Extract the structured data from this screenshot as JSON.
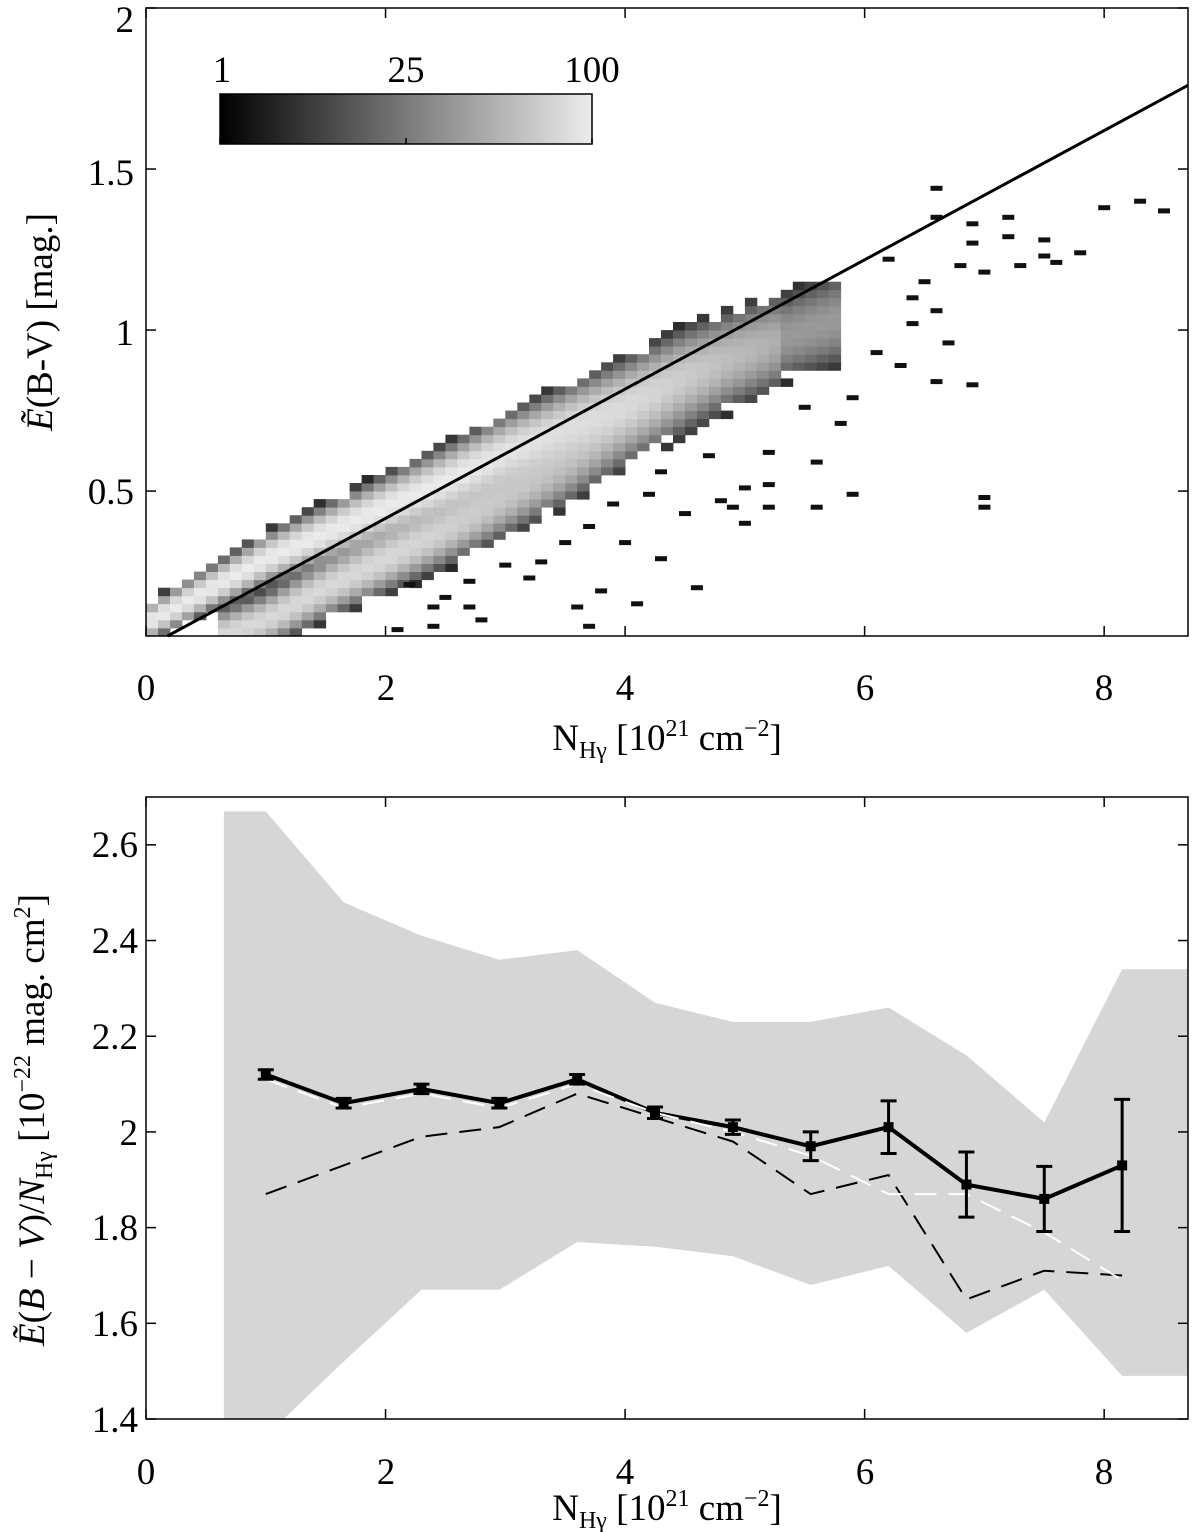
{
  "chart_data": [
    {
      "type": "heatmap",
      "title": "",
      "xlabel": "N_Hγ [10^21 cm^-2]",
      "ylabel": "Ẽ(B-V) [mag.]",
      "xlim": [
        0,
        8.7
      ],
      "ylim": [
        0.05,
        2.0
      ],
      "x_ticks": [
        "0",
        "2",
        "4",
        "6",
        "8"
      ],
      "y_ticks": [
        "0.5",
        "1",
        "1.5",
        "2"
      ],
      "colorbar": {
        "ticks": [
          "1",
          "25",
          "100"
        ],
        "range": [
          1,
          100
        ],
        "colormap": "gray"
      },
      "fit_line": {
        "x": [
          0.18,
          8.7
        ],
        "y": [
          0.05,
          1.76
        ]
      },
      "density_ridges": [
        {
          "name": "upper ridge",
          "x": [
            0.0,
            0.5,
            1.0,
            1.5,
            2.0,
            2.5,
            3.0,
            3.5,
            4.0,
            4.5,
            5.0,
            5.5
          ],
          "y": [
            0.09,
            0.19,
            0.29,
            0.37,
            0.45,
            0.53,
            0.62,
            0.7,
            0.78,
            0.87,
            0.94,
            1.0
          ],
          "peak": 100
        },
        {
          "name": "lower ridge",
          "x": [
            0.6,
            1.0,
            1.5,
            2.0,
            2.5,
            3.0,
            3.5,
            4.0,
            4.5,
            5.0
          ],
          "y": [
            0.05,
            0.1,
            0.2,
            0.29,
            0.38,
            0.48,
            0.58,
            0.7,
            0.8,
            0.9
          ],
          "peak": 70
        }
      ],
      "outliers": [
        [
          6.6,
          1.44
        ],
        [
          6.6,
          1.35
        ],
        [
          6.9,
          1.33
        ],
        [
          6.9,
          1.27
        ],
        [
          7.2,
          1.35
        ],
        [
          7.2,
          1.29
        ],
        [
          7.5,
          1.28
        ],
        [
          7.5,
          1.23
        ],
        [
          7.8,
          1.24
        ],
        [
          7.6,
          1.21
        ],
        [
          8.0,
          1.38
        ],
        [
          8.3,
          1.4
        ],
        [
          8.5,
          1.37
        ],
        [
          7.3,
          1.2
        ],
        [
          6.8,
          1.2
        ],
        [
          7.0,
          1.18
        ],
        [
          6.2,
          1.22
        ],
        [
          6.5,
          1.15
        ],
        [
          6.4,
          1.1
        ],
        [
          6.6,
          1.06
        ],
        [
          6.4,
          1.02
        ],
        [
          6.7,
          0.96
        ],
        [
          6.1,
          0.93
        ],
        [
          6.3,
          0.89
        ],
        [
          6.6,
          0.84
        ],
        [
          6.9,
          0.83
        ],
        [
          5.9,
          0.79
        ],
        [
          5.5,
          0.76
        ],
        [
          5.8,
          0.71
        ],
        [
          5.2,
          0.52
        ],
        [
          5.0,
          0.51
        ],
        [
          4.8,
          0.47
        ],
        [
          4.9,
          0.45
        ],
        [
          5.0,
          0.4
        ],
        [
          4.5,
          0.43
        ],
        [
          4.2,
          0.49
        ],
        [
          3.9,
          0.46
        ],
        [
          3.7,
          0.39
        ],
        [
          3.5,
          0.34
        ],
        [
          3.3,
          0.28
        ],
        [
          3.0,
          0.27
        ],
        [
          3.2,
          0.23
        ],
        [
          2.7,
          0.22
        ],
        [
          2.5,
          0.17
        ],
        [
          2.7,
          0.14
        ],
        [
          2.8,
          0.1
        ],
        [
          2.4,
          0.14
        ],
        [
          2.2,
          0.21
        ],
        [
          2.4,
          0.08
        ],
        [
          2.1,
          0.07
        ],
        [
          3.7,
          0.08
        ],
        [
          4.1,
          0.15
        ],
        [
          4.6,
          0.2
        ],
        [
          4.3,
          0.29
        ],
        [
          4.0,
          0.34
        ],
        [
          3.6,
          0.14
        ],
        [
          3.8,
          0.19
        ],
        [
          7.0,
          0.48
        ],
        [
          7.0,
          0.45
        ],
        [
          5.2,
          0.45
        ],
        [
          5.6,
          0.45
        ],
        [
          4.3,
          0.56
        ],
        [
          4.7,
          0.61
        ],
        [
          5.2,
          0.62
        ],
        [
          5.6,
          0.59
        ],
        [
          5.9,
          0.49
        ]
      ]
    },
    {
      "type": "line",
      "title": "",
      "xlabel": "N_Hγ [10^21 cm^-2]",
      "ylabel": "Ẽ(B−V)/N_Hγ [10^-22 mag. cm^2]",
      "xlim": [
        0,
        8.7
      ],
      "ylim": [
        1.4,
        2.7
      ],
      "x_ticks": [
        "0",
        "2",
        "4",
        "6",
        "8"
      ],
      "y_ticks": [
        "1.4",
        "1.6",
        "1.8",
        "2",
        "2.2",
        "2.4",
        "2.6"
      ],
      "band": {
        "name": "spread",
        "x": [
          0.65,
          1.0,
          1.65,
          2.3,
          2.95,
          3.6,
          4.25,
          4.9,
          5.55,
          6.2,
          6.85,
          7.5,
          8.15,
          8.7
        ],
        "upper": [
          2.67,
          2.67,
          2.48,
          2.41,
          2.36,
          2.38,
          2.27,
          2.23,
          2.23,
          2.26,
          2.16,
          2.02,
          2.34,
          2.34
        ],
        "lower_x": [
          8.7,
          8.15,
          7.5,
          6.85,
          6.2,
          5.55,
          4.9,
          4.25,
          3.6,
          2.95,
          2.3,
          1.65,
          1.15,
          0.65
        ],
        "lower": [
          1.49,
          1.49,
          1.67,
          1.58,
          1.72,
          1.68,
          1.74,
          1.76,
          1.77,
          1.67,
          1.67,
          1.52,
          1.4,
          1.4
        ]
      },
      "series": [
        {
          "name": "mean",
          "style": "solid-black",
          "x": [
            1.0,
            1.65,
            2.3,
            2.95,
            3.6,
            4.25,
            4.9,
            5.55,
            6.2,
            6.85,
            7.5,
            8.15
          ],
          "y": [
            2.12,
            2.06,
            2.09,
            2.06,
            2.11,
            2.04,
            2.01,
            1.97,
            2.01,
            1.89,
            1.86,
            1.93
          ],
          "yerr": [
            0.01,
            0.01,
            0.01,
            0.01,
            0.01,
            0.012,
            0.015,
            0.03,
            0.055,
            0.068,
            0.068,
            0.138
          ]
        },
        {
          "name": "white dashed",
          "style": "dashed-white",
          "x": [
            1.0,
            1.65,
            2.3,
            2.95,
            3.6,
            4.25,
            4.9,
            5.55,
            6.2,
            6.85,
            7.5,
            8.15
          ],
          "y": [
            2.11,
            2.05,
            2.08,
            2.05,
            2.1,
            2.04,
            2.0,
            1.95,
            1.87,
            1.87,
            1.79,
            1.69
          ]
        },
        {
          "name": "black dashed",
          "style": "dashed-black",
          "x": [
            1.0,
            1.65,
            2.3,
            2.95,
            3.6,
            4.25,
            4.9,
            5.55,
            6.2,
            6.85,
            7.5,
            8.15
          ],
          "y": [
            1.87,
            1.93,
            1.99,
            2.01,
            2.08,
            2.03,
            1.98,
            1.87,
            1.91,
            1.65,
            1.71,
            1.7
          ]
        }
      ]
    }
  ]
}
